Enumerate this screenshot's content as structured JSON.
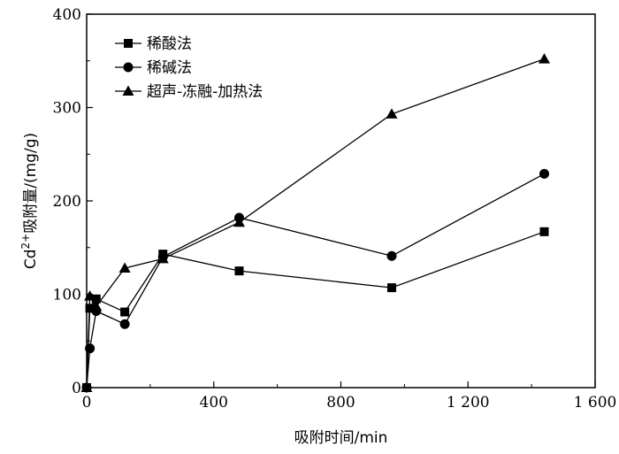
{
  "chart_data": {
    "type": "line",
    "xlabel": "吸附时间/min",
    "ylabel": {
      "prefix": "Cd",
      "superscript": "2+",
      "suffix": "吸附量/(mg/g)"
    },
    "xlim": [
      0,
      1600
    ],
    "ylim": [
      0,
      400
    ],
    "x_ticks": [
      0,
      400,
      800,
      1200,
      1600
    ],
    "x_tick_labels": [
      "0",
      "400",
      "800",
      "1 200",
      "1 600"
    ],
    "y_ticks": [
      0,
      100,
      200,
      300,
      400
    ],
    "y_tick_labels": [
      "0",
      "100",
      "200",
      "300",
      "400"
    ],
    "grid": false,
    "legend_position": "top-left",
    "series": [
      {
        "name": "稀酸法",
        "marker": "square",
        "x": [
          0,
          10,
          30,
          120,
          240,
          480,
          960,
          1440
        ],
        "y": [
          0,
          85,
          95,
          81,
          143,
          125,
          107,
          167
        ]
      },
      {
        "name": "稀碱法",
        "marker": "circle",
        "x": [
          0,
          10,
          30,
          120,
          240,
          480,
          960,
          1440
        ],
        "y": [
          0,
          42,
          82,
          68,
          140,
          182,
          141,
          229
        ]
      },
      {
        "name": "超声-冻融-加热法",
        "marker": "triangle",
        "x": [
          0,
          10,
          30,
          120,
          240,
          480,
          960,
          1440
        ],
        "y": [
          0,
          98,
          87,
          128,
          138,
          177,
          293,
          352
        ]
      }
    ]
  }
}
